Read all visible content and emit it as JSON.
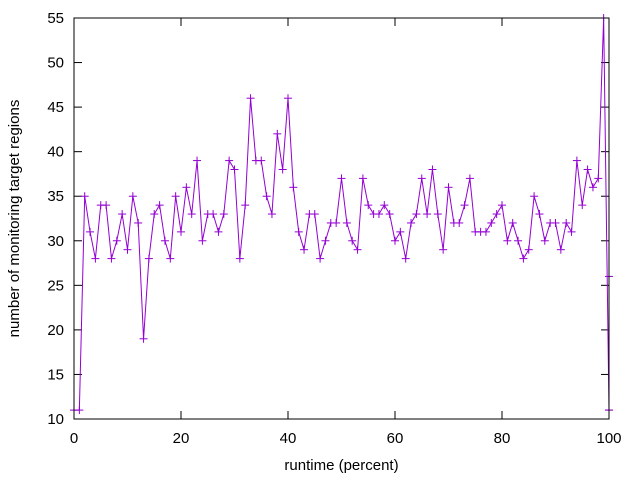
{
  "chart_data": {
    "type": "line",
    "title": "",
    "xlabel": "runtime (percent)",
    "ylabel": "number of monitoring target regions",
    "xlim": [
      0,
      100
    ],
    "ylim": [
      10,
      55
    ],
    "xticks": [
      0,
      20,
      40,
      60,
      80,
      100
    ],
    "yticks": [
      10,
      15,
      20,
      25,
      30,
      35,
      40,
      45,
      50,
      55
    ],
    "grid": false,
    "legend": "none",
    "marker": "plus",
    "colors": {
      "series": "#9400d3",
      "axis": "#000000"
    },
    "series": [
      {
        "x": [
          0,
          1,
          2,
          3,
          4,
          5,
          6,
          7,
          8,
          9,
          10,
          11,
          12,
          13,
          14,
          15,
          16,
          17,
          18,
          19,
          20,
          21,
          22,
          23,
          24,
          25,
          26,
          27,
          28,
          29,
          30,
          31,
          32,
          33,
          34,
          35,
          36,
          37,
          38,
          39,
          40,
          41,
          42,
          43,
          44,
          45,
          46,
          47,
          48,
          49,
          50,
          51,
          52,
          53,
          54,
          55,
          56,
          57,
          58,
          59,
          60,
          61,
          62,
          63,
          64,
          65,
          66,
          67,
          68,
          69,
          70,
          71,
          72,
          73,
          74,
          75,
          76,
          77,
          78,
          79,
          80,
          81,
          82,
          83,
          84,
          85,
          86,
          87,
          88,
          89,
          90,
          91,
          92,
          93,
          94,
          95,
          96,
          97,
          98,
          99,
          100,
          100,
          100
        ],
        "y": [
          11,
          11,
          35,
          31,
          28,
          34,
          34,
          28,
          30,
          33,
          29,
          35,
          32,
          19,
          28,
          33,
          34,
          30,
          28,
          35,
          31,
          36,
          33,
          39,
          30,
          33,
          33,
          31,
          33,
          39,
          38,
          28,
          34,
          46,
          39,
          39,
          35,
          33,
          42,
          38,
          46,
          36,
          31,
          29,
          33,
          33,
          28,
          30,
          32,
          32,
          37,
          32,
          30,
          29,
          37,
          34,
          33,
          33,
          34,
          33,
          30,
          31,
          28,
          32,
          33,
          37,
          33,
          38,
          33,
          29,
          36,
          32,
          32,
          34,
          37,
          31,
          31,
          31,
          32,
          33,
          34,
          30,
          32,
          30,
          28,
          29,
          35,
          33,
          30,
          32,
          32,
          29,
          32,
          31,
          39,
          34,
          38,
          36,
          37,
          55,
          11,
          26,
          11
        ]
      }
    ]
  }
}
